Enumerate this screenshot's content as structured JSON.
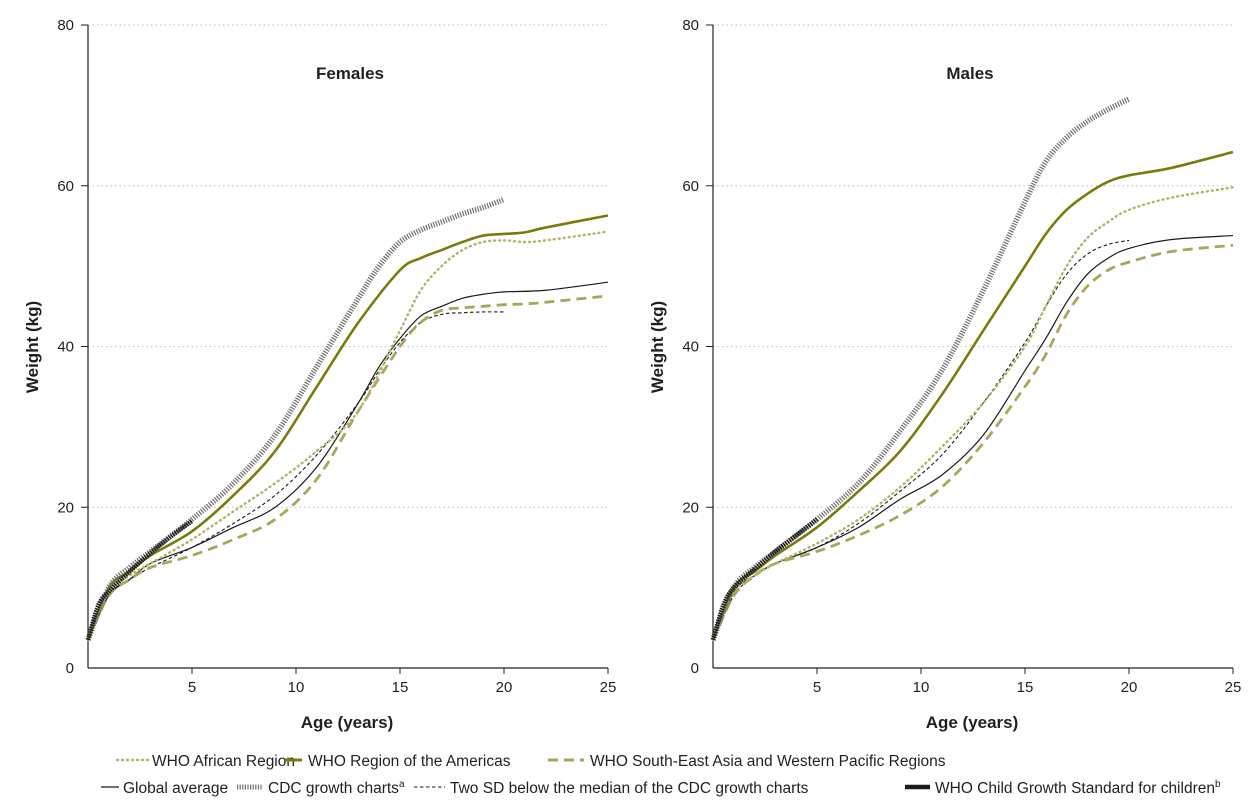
{
  "colors": {
    "african": "#b5b167",
    "americas": "#7d7a0d",
    "seawp": "#aaa55a",
    "global": "#1a1a1a",
    "cdc": "#6f6f6f",
    "cdc_sd": "#1a1a1a",
    "who_child": "#1a1a1a",
    "grid": "#c8c8c8",
    "axis": "#231f20"
  },
  "legend": {
    "african": "WHO African Region",
    "americas": "WHO Region of the Americas",
    "seawp": "WHO South-East Asia and Western Pacific Regions",
    "global": "Global average",
    "cdc": "CDC growth charts",
    "cdc_sup": "a",
    "cdc_sd": "Two SD below the median of the CDC growth charts",
    "who_child": "WHO Child Growth Standard for children",
    "who_child_sup": "b"
  },
  "chart_data": [
    {
      "type": "line",
      "title": "Females",
      "xlabel": "Age (years)",
      "ylabel": "Weight (kg)",
      "xlim": [
        0,
        25
      ],
      "ylim": [
        0,
        80
      ],
      "xticks": [
        5,
        10,
        15,
        20,
        25
      ],
      "yticks": [
        0,
        20,
        40,
        60,
        80
      ],
      "grid": "horizontal dotted",
      "series": [
        {
          "name": "WHO African Region",
          "key": "african",
          "x": [
            0,
            1,
            2,
            3,
            5,
            7,
            9,
            11,
            13,
            15,
            16,
            17,
            18,
            19,
            20,
            21,
            22,
            25
          ],
          "y": [
            3.5,
            9.5,
            11.5,
            13,
            16,
            19.5,
            23,
            27,
            32,
            42,
            47,
            50,
            52,
            53,
            53.2,
            53,
            53.2,
            54.3
          ]
        },
        {
          "name": "WHO Region of the Americas",
          "key": "americas",
          "x": [
            0,
            1,
            2,
            3,
            5,
            7,
            9,
            11,
            13,
            15,
            16,
            17,
            18,
            19,
            20,
            21,
            22,
            25
          ],
          "y": [
            3.5,
            10,
            12,
            14,
            17,
            21.5,
            27,
            35,
            43,
            49.5,
            51,
            52,
            53,
            53.8,
            54,
            54.2,
            54.8,
            56.3
          ]
        },
        {
          "name": "WHO South-East Asia and Western Pacific Regions",
          "key": "seawp",
          "x": [
            0,
            1,
            2,
            3,
            5,
            7,
            9,
            11,
            13,
            15,
            16,
            17,
            18,
            19,
            20,
            21,
            22,
            25
          ],
          "y": [
            3.5,
            9,
            11,
            12.5,
            14,
            16,
            18.5,
            23.5,
            32,
            40,
            43,
            44.5,
            44.8,
            45,
            45.2,
            45.3,
            45.5,
            46.3
          ]
        },
        {
          "name": "Global average",
          "key": "global",
          "x": [
            0,
            1,
            2,
            3,
            5,
            7,
            9,
            11,
            13,
            14,
            15,
            16,
            17,
            18,
            19,
            20,
            22,
            25
          ],
          "y": [
            3.5,
            9,
            11,
            13,
            15,
            17.5,
            20,
            25,
            33,
            37.5,
            41,
            43.8,
            45,
            46,
            46.5,
            46.8,
            47,
            48
          ]
        },
        {
          "name": "CDC growth charts",
          "key": "cdc",
          "x": [
            0,
            1,
            2,
            3,
            5,
            7,
            9,
            11,
            13,
            14,
            15,
            16,
            17,
            18,
            19,
            20
          ],
          "y": [
            3.5,
            10,
            12.5,
            14.5,
            18.5,
            23,
            29,
            37.5,
            46,
            50,
            53,
            54.5,
            55.5,
            56.5,
            57.3,
            58.3
          ]
        },
        {
          "name": "Two SD below the median of the CDC growth charts",
          "key": "cdc_sd",
          "x": [
            0,
            1,
            2,
            3,
            5,
            7,
            9,
            11,
            13,
            14,
            15,
            16,
            17,
            18,
            19,
            20
          ],
          "y": [
            3.5,
            9,
            11,
            12.5,
            15,
            18,
            21.5,
            26.5,
            33,
            37,
            40.5,
            43,
            44,
            44.2,
            44.3,
            44.3
          ]
        },
        {
          "name": "WHO Child Growth Standard for children",
          "key": "who_child",
          "x": [
            0,
            0.5,
            1,
            2,
            3,
            4,
            5
          ],
          "y": [
            3.5,
            7.8,
            9.5,
            12,
            14.3,
            16.4,
            18.3
          ]
        }
      ]
    },
    {
      "type": "line",
      "title": "Males",
      "xlabel": "Age (years)",
      "ylabel": "Weight (kg)",
      "xlim": [
        0,
        25
      ],
      "ylim": [
        0,
        80
      ],
      "xticks": [
        5,
        10,
        15,
        20,
        25
      ],
      "yticks": [
        0,
        20,
        40,
        60,
        80
      ],
      "grid": "horizontal dotted",
      "series": [
        {
          "name": "WHO African Region",
          "key": "african",
          "x": [
            0,
            1,
            2,
            3,
            5,
            7,
            9,
            11,
            13,
            15,
            16,
            17,
            18,
            19,
            20,
            22,
            25
          ],
          "y": [
            3.5,
            9.5,
            11.5,
            13,
            15.5,
            18.5,
            22.5,
            27.5,
            33,
            40,
            45,
            50,
            53.5,
            55.5,
            57,
            58.5,
            59.8
          ]
        },
        {
          "name": "WHO Region of the Americas",
          "key": "americas",
          "x": [
            0,
            1,
            2,
            3,
            5,
            7,
            9,
            11,
            13,
            15,
            16,
            17,
            18,
            19,
            20,
            22,
            25
          ],
          "y": [
            3.5,
            10,
            12,
            14,
            17.5,
            22,
            27,
            34,
            42,
            50,
            54,
            57,
            59,
            60.5,
            61.3,
            62.2,
            64.2
          ]
        },
        {
          "name": "WHO South-East Asia and Western Pacific Regions",
          "key": "seawp",
          "x": [
            0,
            1,
            2,
            3,
            5,
            7,
            9,
            11,
            13,
            15,
            16,
            17,
            18,
            19,
            20,
            22,
            25
          ],
          "y": [
            3.5,
            9,
            11.5,
            13,
            14.5,
            16.5,
            19,
            22.5,
            28,
            35,
            39,
            44,
            47.5,
            49.5,
            50.5,
            51.8,
            52.6
          ]
        },
        {
          "name": "Global average",
          "key": "global",
          "x": [
            0,
            1,
            2,
            3,
            5,
            7,
            9,
            11,
            13,
            15,
            16,
            17,
            18,
            19,
            20,
            22,
            25
          ],
          "y": [
            3.5,
            9.5,
            11.5,
            13,
            15,
            17.5,
            21,
            24,
            29,
            37,
            41,
            45.5,
            49,
            51,
            52.2,
            53.3,
            53.8
          ]
        },
        {
          "name": "CDC growth charts",
          "key": "cdc",
          "x": [
            0,
            1,
            2,
            3,
            5,
            7,
            9,
            11,
            13,
            15,
            16,
            17,
            18,
            19,
            20
          ],
          "y": [
            3.5,
            10,
            12.5,
            14.5,
            18.5,
            23,
            29.5,
            37,
            47,
            58,
            63,
            66,
            68,
            69.5,
            70.8
          ]
        },
        {
          "name": "Two SD below the median of the CDC growth charts",
          "key": "cdc_sd",
          "x": [
            0,
            1,
            2,
            3,
            5,
            7,
            9,
            11,
            13,
            15,
            16,
            17,
            18,
            19,
            20
          ],
          "y": [
            3.5,
            9,
            11.5,
            13,
            15,
            18,
            22,
            26.5,
            33,
            40.5,
            45,
            49,
            51.5,
            52.7,
            53.2
          ]
        },
        {
          "name": "WHO Child Growth Standard for children",
          "key": "who_child",
          "x": [
            0,
            0.5,
            1,
            2,
            3,
            4,
            5
          ],
          "y": [
            3.5,
            7.8,
            10,
            12.3,
            14.5,
            16.5,
            18.5
          ]
        }
      ]
    }
  ]
}
